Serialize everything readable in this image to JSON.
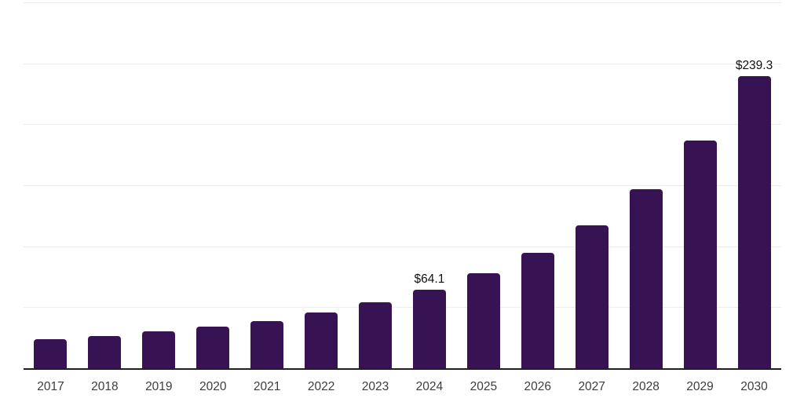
{
  "chart_data": {
    "type": "bar",
    "title": "",
    "xlabel": "",
    "ylabel": "",
    "categories": [
      "2017",
      "2018",
      "2019",
      "2020",
      "2021",
      "2022",
      "2023",
      "2024",
      "2025",
      "2026",
      "2027",
      "2028",
      "2029",
      "2030"
    ],
    "values": [
      23.8,
      26.2,
      30.0,
      34.3,
      38.6,
      45.4,
      54.4,
      64.1,
      78.2,
      94.9,
      117.0,
      146.5,
      186.6,
      239.3
    ],
    "data_labels": [
      null,
      null,
      null,
      null,
      null,
      null,
      null,
      "$64.1",
      null,
      null,
      null,
      null,
      null,
      "$239.3"
    ],
    "ylim": [
      0,
      300
    ],
    "gridline_step": 50,
    "grid": "horizontal-only",
    "legend": "none",
    "y_axis_tick_labels_visible": false,
    "colors": {
      "bar": "#371353",
      "gridline": "#ededed",
      "axis_line": "#1f1f1f",
      "value_label": "#111111",
      "tick_label": "#3d3d3d",
      "background": "#ffffff"
    }
  }
}
